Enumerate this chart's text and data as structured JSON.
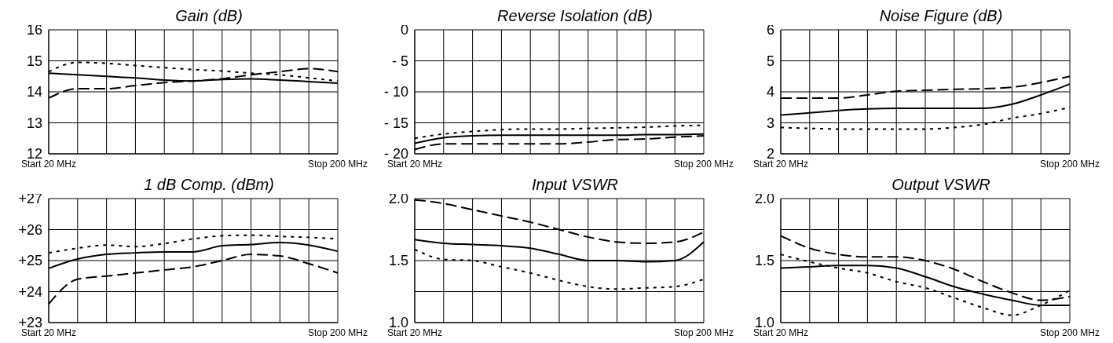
{
  "chart_data": [
    {
      "type": "line",
      "title": "Gain (dB)",
      "categories": [
        "Start 20 MHz",
        null,
        null,
        null,
        null,
        null,
        null,
        null,
        null,
        null,
        "Stop 200 MHz"
      ],
      "ylim": [
        12,
        16
      ],
      "yticks": [
        12,
        13,
        14,
        15,
        16
      ],
      "grid": true,
      "series": [
        {
          "color": "#000000",
          "line_style": "solid",
          "values": [
            14.6,
            14.55,
            14.5,
            14.45,
            14.38,
            14.35,
            14.4,
            14.42,
            14.38,
            14.33,
            14.28
          ]
        },
        {
          "color": "#000000",
          "line_style": "dashed",
          "values": [
            13.8,
            14.1,
            14.1,
            14.2,
            14.3,
            14.35,
            14.42,
            14.55,
            14.65,
            14.75,
            14.65
          ]
        },
        {
          "color": "#000000",
          "line_style": "dotted",
          "values": [
            14.65,
            14.95,
            14.92,
            14.85,
            14.78,
            14.72,
            14.67,
            14.6,
            14.55,
            14.45,
            14.35
          ]
        }
      ]
    },
    {
      "type": "line",
      "title": "Reverse Isolation (dB)",
      "categories": [
        "Start 20 MHz",
        null,
        null,
        null,
        null,
        null,
        null,
        null,
        null,
        null,
        "Stop 200 MHz"
      ],
      "ylim": [
        -20,
        0
      ],
      "yticks": [
        {
          "value": -20,
          "label": "- 20"
        },
        {
          "value": -15,
          "label": "- 15"
        },
        {
          "value": -10,
          "label": "- 10"
        },
        {
          "value": -5,
          "label": "- 5"
        },
        0
      ],
      "grid": true,
      "series": [
        {
          "color": "#000000",
          "line_style": "solid",
          "values": [
            -18.3,
            -17.4,
            -17.1,
            -17.0,
            -17.0,
            -17.0,
            -17.0,
            -17.0,
            -16.9,
            -16.9,
            -16.8
          ]
        },
        {
          "color": "#000000",
          "line_style": "dashed",
          "values": [
            -19.3,
            -18.4,
            -18.4,
            -18.4,
            -18.4,
            -18.4,
            -18.1,
            -17.7,
            -17.6,
            -17.3,
            -17.1
          ]
        },
        {
          "color": "#000000",
          "line_style": "dotted",
          "values": [
            -17.5,
            -16.8,
            -16.4,
            -16.1,
            -16.0,
            -16.0,
            -15.9,
            -15.8,
            -15.7,
            -15.5,
            -15.4
          ]
        }
      ]
    },
    {
      "type": "line",
      "title": "Noise Figure (dB)",
      "categories": [
        "Start 20 MHz",
        null,
        null,
        null,
        null,
        null,
        null,
        null,
        null,
        null,
        "Stop 200 MHz"
      ],
      "ylim": [
        2,
        6
      ],
      "yticks": [
        2,
        3,
        4,
        5,
        6
      ],
      "grid": true,
      "series": [
        {
          "color": "#000000",
          "line_style": "solid",
          "values": [
            3.25,
            3.32,
            3.4,
            3.45,
            3.47,
            3.47,
            3.47,
            3.47,
            3.6,
            3.9,
            4.25
          ]
        },
        {
          "color": "#000000",
          "line_style": "dashed",
          "values": [
            3.8,
            3.8,
            3.8,
            3.9,
            4.02,
            4.05,
            4.08,
            4.1,
            4.15,
            4.3,
            4.5
          ]
        },
        {
          "color": "#000000",
          "line_style": "dotted",
          "values": [
            2.85,
            2.82,
            2.8,
            2.8,
            2.8,
            2.8,
            2.85,
            2.95,
            3.15,
            3.3,
            3.5
          ]
        }
      ]
    },
    {
      "type": "line",
      "title": "1 dB Comp. (dBm)",
      "categories": [
        "Start 20 MHz",
        null,
        null,
        null,
        null,
        null,
        null,
        null,
        null,
        null,
        "Stop 200 MHz"
      ],
      "ylim": [
        23,
        27
      ],
      "yticks": [
        {
          "value": 23,
          "label": "+23"
        },
        {
          "value": 24,
          "label": "+24"
        },
        {
          "value": 25,
          "label": "+25"
        },
        {
          "value": 26,
          "label": "+26"
        },
        {
          "value": 27,
          "label": "+27"
        }
      ],
      "grid": true,
      "series": [
        {
          "color": "#000000",
          "line_style": "solid",
          "values": [
            24.75,
            25.05,
            25.2,
            25.25,
            25.28,
            25.28,
            25.48,
            25.52,
            25.58,
            25.5,
            25.3
          ]
        },
        {
          "color": "#000000",
          "line_style": "dashed",
          "values": [
            23.6,
            24.4,
            24.5,
            24.6,
            24.7,
            24.8,
            25.0,
            25.2,
            25.15,
            24.9,
            24.6
          ]
        },
        {
          "color": "#000000",
          "line_style": "dotted",
          "values": [
            25.25,
            25.4,
            25.5,
            25.45,
            25.55,
            25.7,
            25.8,
            25.82,
            25.78,
            25.75,
            25.7
          ]
        }
      ]
    },
    {
      "type": "line",
      "title": "Input VSWR",
      "categories": [
        "Start 20 MHz",
        null,
        null,
        null,
        null,
        null,
        null,
        null,
        null,
        null,
        "Stop 200 MHz"
      ],
      "ylim": [
        1,
        2
      ],
      "yticks": [
        {
          "value": 1,
          "label": "1.0"
        },
        {
          "value": 1.25,
          "label": null
        },
        {
          "value": 1.5,
          "label": "1.5"
        },
        {
          "value": 1.75,
          "label": null
        },
        {
          "value": 2,
          "label": "2.0"
        }
      ],
      "grid": true,
      "series": [
        {
          "color": "#000000",
          "line_style": "solid",
          "values": [
            1.67,
            1.64,
            1.63,
            1.62,
            1.6,
            1.55,
            1.5,
            1.5,
            1.49,
            1.5,
            1.65
          ]
        },
        {
          "color": "#000000",
          "line_style": "dashed",
          "values": [
            1.99,
            1.96,
            1.91,
            1.86,
            1.81,
            1.75,
            1.69,
            1.65,
            1.64,
            1.65,
            1.73
          ]
        },
        {
          "color": "#000000",
          "line_style": "dotted",
          "values": [
            1.59,
            1.51,
            1.5,
            1.45,
            1.4,
            1.34,
            1.29,
            1.27,
            1.28,
            1.29,
            1.35
          ]
        }
      ]
    },
    {
      "type": "line",
      "title": "Output VSWR",
      "categories": [
        "Start 20 MHz",
        null,
        null,
        null,
        null,
        null,
        null,
        null,
        null,
        null,
        "Stop 200 MHz"
      ],
      "ylim": [
        1,
        2
      ],
      "yticks": [
        {
          "value": 1,
          "label": "1.0"
        },
        {
          "value": 1.25,
          "label": null
        },
        {
          "value": 1.5,
          "label": "1.5"
        },
        {
          "value": 1.75,
          "label": null
        },
        {
          "value": 2,
          "label": "2.0"
        }
      ],
      "grid": true,
      "series": [
        {
          "color": "#000000",
          "line_style": "solid",
          "values": [
            1.44,
            1.45,
            1.46,
            1.46,
            1.44,
            1.37,
            1.29,
            1.23,
            1.18,
            1.14,
            1.14
          ]
        },
        {
          "color": "#000000",
          "line_style": "dashed",
          "values": [
            1.7,
            1.6,
            1.55,
            1.53,
            1.53,
            1.5,
            1.43,
            1.33,
            1.24,
            1.18,
            1.21
          ]
        },
        {
          "color": "#000000",
          "line_style": "dotted",
          "values": [
            1.55,
            1.49,
            1.44,
            1.4,
            1.33,
            1.28,
            1.2,
            1.12,
            1.06,
            1.14,
            1.26
          ]
        }
      ]
    }
  ]
}
